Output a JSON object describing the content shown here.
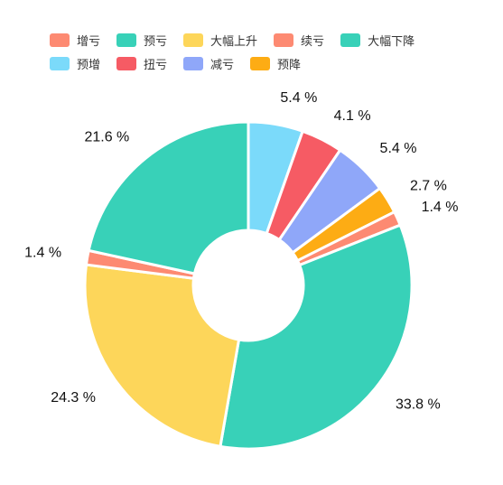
{
  "chart_data": {
    "type": "pie",
    "donut": true,
    "legend_position": "top",
    "series": [
      {
        "name": "增亏",
        "value": 1.4,
        "label": "1.4 %",
        "color": "#fd8a72"
      },
      {
        "name": "预亏",
        "value": 21.6,
        "label": "21.6 %",
        "color": "#38d1b8"
      },
      {
        "name": "大幅上升",
        "value": 24.3,
        "label": "24.3 %",
        "color": "#fdd65a"
      },
      {
        "name": "续亏",
        "value": 1.4,
        "label": "1.4 %",
        "color": "#fd8a72"
      },
      {
        "name": "大幅下降",
        "value": 33.8,
        "label": "33.8 %",
        "color": "#38d1b8"
      },
      {
        "name": "预增",
        "value": 5.4,
        "label": "5.4 %",
        "color": "#7bdafa"
      },
      {
        "name": "扭亏",
        "value": 4.1,
        "label": "4.1 %",
        "color": "#f65b64"
      },
      {
        "name": "减亏",
        "value": 5.4,
        "label": "5.4 %",
        "color": "#8fa7f9"
      },
      {
        "name": "预降",
        "value": 2.7,
        "label": "2.7 %",
        "color": "#fdac14"
      }
    ],
    "slice_order": [
      "预增",
      "扭亏",
      "减亏",
      "预降",
      "增亏",
      "大幅下降",
      "大幅上升",
      "续亏",
      "预亏"
    ]
  }
}
